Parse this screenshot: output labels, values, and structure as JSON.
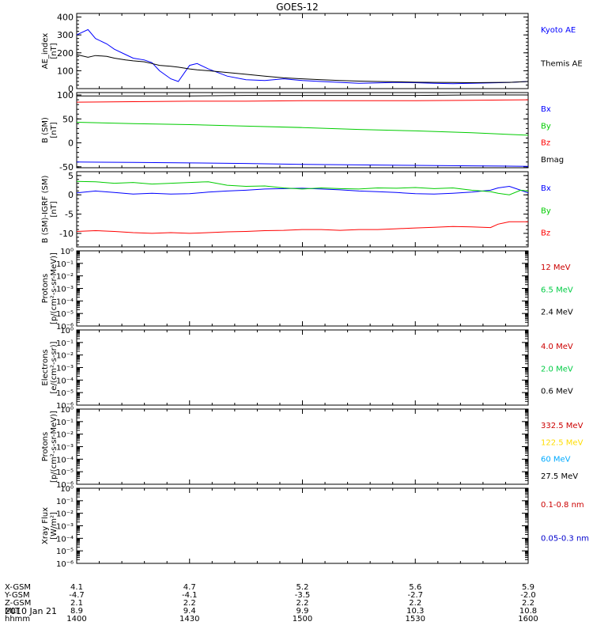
{
  "chart_data": [
    {
      "type": "line",
      "title": "GOES-12",
      "ylabel_lines": [
        "AE_index",
        "[nT]"
      ],
      "ylim": [
        0,
        420
      ],
      "yticks": [
        0,
        100,
        200,
        300,
        400
      ],
      "ytick_labels": [
        "0",
        "100",
        "200",
        "300",
        "400"
      ],
      "x": [
        1400,
        1403,
        1405,
        1408,
        1410,
        1413,
        1415,
        1418,
        1420,
        1422,
        1425,
        1427,
        1430,
        1432,
        1435,
        1440,
        1445,
        1450,
        1455,
        1500,
        1505,
        1510,
        1515,
        1520,
        1525,
        1530,
        1535,
        1540,
        1545,
        1550,
        1555,
        1600
      ],
      "series": [
        {
          "name": "Kyoto AE",
          "color": "#0000ff",
          "values": [
            300,
            330,
            280,
            250,
            220,
            190,
            170,
            160,
            145,
            100,
            55,
            40,
            130,
            140,
            110,
            70,
            50,
            45,
            55,
            45,
            40,
            35,
            30,
            32,
            35,
            33,
            30,
            28,
            30,
            32,
            35,
            40
          ]
        },
        {
          "name": "Themis AE",
          "color": "#000000",
          "values": [
            190,
            175,
            185,
            180,
            170,
            160,
            155,
            150,
            140,
            130,
            125,
            120,
            110,
            105,
            100,
            90,
            80,
            70,
            60,
            55,
            50,
            45,
            42,
            40,
            38,
            36,
            35,
            34,
            33,
            34,
            35,
            40
          ]
        }
      ]
    },
    {
      "type": "line",
      "ylabel_lines": [
        "B (SM)",
        "[nT]"
      ],
      "ylim": [
        -52,
        105
      ],
      "yticks": [
        -50,
        0,
        50,
        100
      ],
      "ytick_labels": [
        "-50",
        "0",
        "50",
        "100"
      ],
      "x": [
        1400,
        1415,
        1430,
        1445,
        1500,
        1515,
        1530,
        1545,
        1600
      ],
      "series": [
        {
          "name": "Bx",
          "color": "#0000ff",
          "values": [
            -40,
            -41,
            -42,
            -43,
            -45,
            -46,
            -47,
            -48,
            -49
          ]
        },
        {
          "name": "By",
          "color": "#00cc00",
          "values": [
            43,
            40,
            38,
            35,
            32,
            28,
            25,
            21,
            16
          ]
        },
        {
          "name": "Bz",
          "color": "#ff0000",
          "values": [
            85,
            86,
            87,
            87,
            88,
            88,
            88,
            89,
            90
          ]
        },
        {
          "name": "Bmag",
          "color": "#000000",
          "values": [
            98,
            98,
            98,
            99,
            99,
            99,
            99,
            100,
            100
          ]
        }
      ]
    },
    {
      "type": "line",
      "ylabel_lines": [
        "B (SM)-IGRF (SM)",
        "[nT]"
      ],
      "ylim": [
        -13.5,
        6
      ],
      "yticks": [
        -10,
        -5,
        0,
        5
      ],
      "ytick_labels": [
        "-10",
        "-5",
        "0",
        "5"
      ],
      "x": [
        1400,
        1405,
        1410,
        1415,
        1420,
        1425,
        1430,
        1435,
        1440,
        1445,
        1450,
        1455,
        1500,
        1505,
        1510,
        1515,
        1520,
        1525,
        1530,
        1535,
        1540,
        1545,
        1550,
        1552,
        1555,
        1558,
        1600
      ],
      "series": [
        {
          "name": "Bx",
          "color": "#0000ff",
          "values": [
            0.5,
            1,
            0.6,
            0.2,
            0.4,
            0.2,
            0.3,
            0.7,
            1,
            1.2,
            1.5,
            1.6,
            1.7,
            1.5,
            1.3,
            1,
            0.8,
            0.6,
            0.3,
            0.2,
            0.4,
            0.7,
            1.2,
            1.8,
            2.2,
            1.2,
            0.5
          ]
        },
        {
          "name": "By",
          "color": "#00cc00",
          "values": [
            3.5,
            3.4,
            3,
            3.2,
            2.8,
            3,
            3.2,
            3.4,
            2.5,
            2.2,
            2.3,
            1.8,
            1.5,
            1.8,
            1.6,
            1.5,
            1.8,
            1.7,
            1.9,
            1.6,
            1.8,
            1.2,
            0.8,
            0.4,
            0,
            1.2,
            1
          ]
        },
        {
          "name": "Bz",
          "color": "#ff0000",
          "values": [
            -9.5,
            -9.3,
            -9.5,
            -9.8,
            -10,
            -9.8,
            -10,
            -9.8,
            -9.6,
            -9.5,
            -9.3,
            -9.2,
            -9,
            -9,
            -9.2,
            -9,
            -9,
            -8.8,
            -8.6,
            -8.4,
            -8.2,
            -8.3,
            -8.5,
            -7.6,
            -7,
            -7,
            -7
          ]
        }
      ]
    },
    {
      "type": "line",
      "ylabel_lines": [
        "Protons",
        "[p/(cm²-s-sr-MeV)]"
      ],
      "ylog": true,
      "ylim": [
        1e-06,
        1
      ],
      "ytick_labels": [
        "10⁻⁶",
        "10⁻⁵",
        "10⁻⁴",
        "10⁻³",
        "10⁻²",
        "10⁻¹",
        "10⁰"
      ],
      "series": [
        {
          "name": "12 MeV",
          "color": "#cc0000"
        },
        {
          "name": "6.5 MeV",
          "color": "#00cc44"
        },
        {
          "name": "2.4 MeV",
          "color": "#000000"
        }
      ]
    },
    {
      "type": "line",
      "ylabel_lines": [
        "Electrons",
        "[e/(cm²-s-sr)]"
      ],
      "ylog": true,
      "ylim": [
        1e-06,
        1
      ],
      "ytick_labels": [
        "10⁻⁶",
        "10⁻⁵",
        "10⁻⁴",
        "10⁻³",
        "10⁻²",
        "10⁻¹",
        "10⁰"
      ],
      "series": [
        {
          "name": "4.0 MeV",
          "color": "#cc0000"
        },
        {
          "name": "2.0 MeV",
          "color": "#00cc44"
        },
        {
          "name": "0.6 MeV",
          "color": "#000000"
        }
      ]
    },
    {
      "type": "line",
      "ylabel_lines": [
        "Protons",
        "[p/(cm²-s-sr-MeV)]"
      ],
      "ylog": true,
      "ylim": [
        1e-06,
        1
      ],
      "ytick_labels": [
        "10⁻⁶",
        "10⁻⁵",
        "10⁻⁴",
        "10⁻³",
        "10⁻²",
        "10⁻¹",
        "10⁰"
      ],
      "series": [
        {
          "name": "332.5 MeV",
          "color": "#cc0000"
        },
        {
          "name": "122.5 MeV",
          "color": "#ffdd00"
        },
        {
          "name": "60 MeV",
          "color": "#00aaff"
        },
        {
          "name": "27.5 MeV",
          "color": "#000000"
        }
      ]
    },
    {
      "type": "line",
      "ylabel_lines": [
        "Xray Flux",
        "[W/m²]"
      ],
      "ylog": true,
      "ylim": [
        1e-06,
        1
      ],
      "ytick_labels": [
        "10⁻⁶",
        "10⁻⁵",
        "10⁻⁴",
        "10⁻³",
        "10⁻²",
        "10⁻¹",
        "10⁰"
      ],
      "series": [
        {
          "name": "0.1-0.8 nm",
          "color": "#cc0000"
        },
        {
          "name": "0.05-0.3 nm",
          "color": "#0000cc"
        }
      ]
    }
  ],
  "x_axis": {
    "range": [
      1400,
      1600
    ],
    "row_labels": [
      "X-GSM",
      "Y-GSM",
      "Z-GSM",
      "MLT",
      "hhmm"
    ],
    "columns": [
      {
        "hhmm": 1400,
        "values": [
          "4.1",
          "-4.7",
          "2.1",
          "8.9",
          "1400"
        ]
      },
      {
        "hhmm": 1430,
        "values": [
          "4.7",
          "-4.1",
          "2.2",
          "9.4",
          "1430"
        ]
      },
      {
        "hhmm": 1500,
        "values": [
          "5.2",
          "-3.5",
          "2.2",
          "9.9",
          "1500"
        ]
      },
      {
        "hhmm": 1530,
        "values": [
          "5.6",
          "-2.7",
          "2.2",
          "10.3",
          "1530"
        ]
      },
      {
        "hhmm": 1600,
        "values": [
          "5.9",
          "-2.0",
          "2.2",
          "10.8",
          "1600"
        ]
      }
    ],
    "date": "2010 Jan 21"
  }
}
